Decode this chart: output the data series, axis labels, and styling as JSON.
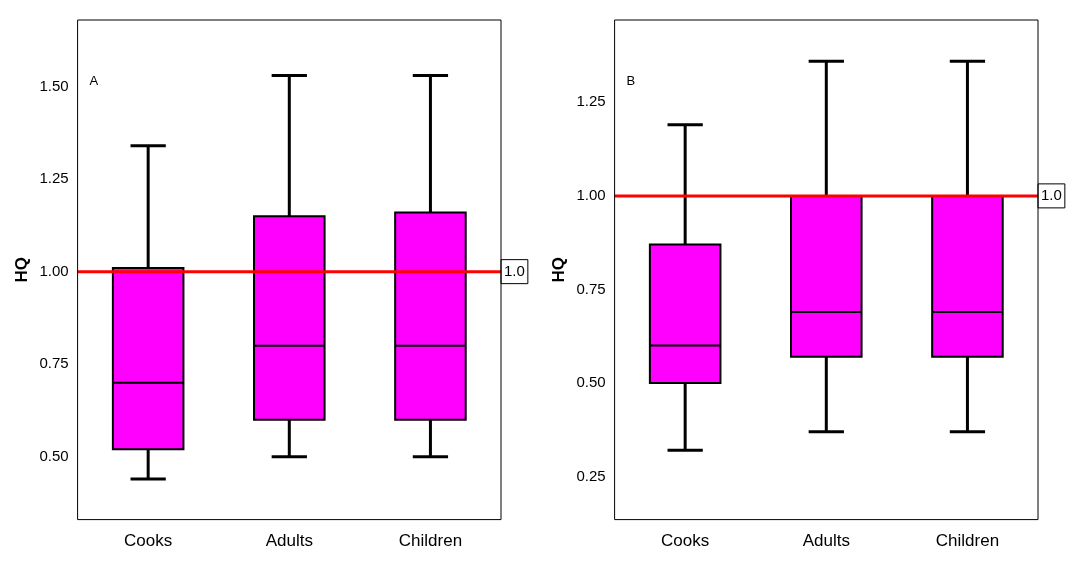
{
  "chart_data": [
    {
      "type": "box",
      "ylabel": "HQ",
      "categories": [
        "Cooks",
        "Adults",
        "Children"
      ],
      "color": "#ff00ff",
      "ylim": [
        0.33,
        1.68
      ],
      "yticks": [
        {
          "value": 0.5,
          "label": "0.50"
        },
        {
          "value": 0.75,
          "label": "0.75"
        },
        {
          "value": 1,
          "label": "1.00"
        },
        {
          "value": 1.25,
          "label": "1.25"
        },
        {
          "value": 1.5,
          "label": "1.50"
        }
      ],
      "boxes": [
        {
          "low": 0.44,
          "q1": 0.52,
          "median": 0.7,
          "q3": 1.01,
          "high": 1.34
        },
        {
          "low": 0.5,
          "q1": 0.6,
          "median": 0.8,
          "q3": 1.15,
          "high": 1.53
        },
        {
          "low": 0.5,
          "q1": 0.6,
          "median": 0.8,
          "q3": 1.16,
          "high": 1.53
        }
      ],
      "ref_lines": [
        {
          "axis": "y",
          "value": 1,
          "label": "1.0",
          "color": "#ff0000"
        }
      ],
      "annotations": [
        "A"
      ]
    },
    {
      "type": "box",
      "ylabel": "HQ",
      "categories": [
        "Cooks",
        "Adults",
        "Children"
      ],
      "color": "#ff00ff",
      "ylim": [
        0.135,
        1.47
      ],
      "yticks": [
        {
          "value": 0.25,
          "label": "0.25"
        },
        {
          "value": 0.5,
          "label": "0.50"
        },
        {
          "value": 0.75,
          "label": "0.75"
        },
        {
          "value": 1,
          "label": "1.00"
        },
        {
          "value": 1.25,
          "label": "1.25"
        }
      ],
      "boxes": [
        {
          "low": 0.32,
          "q1": 0.5,
          "median": 0.6,
          "q3": 0.87,
          "high": 1.19
        },
        {
          "low": 0.37,
          "q1": 0.57,
          "median": 0.69,
          "q3": 1.0,
          "high": 1.36
        },
        {
          "low": 0.37,
          "q1": 0.57,
          "median": 0.69,
          "q3": 1.0,
          "high": 1.36
        }
      ],
      "ref_lines": [
        {
          "axis": "y",
          "value": 1,
          "label": "1.0",
          "color": "#ff0000"
        }
      ],
      "annotations": [
        "B"
      ]
    }
  ]
}
